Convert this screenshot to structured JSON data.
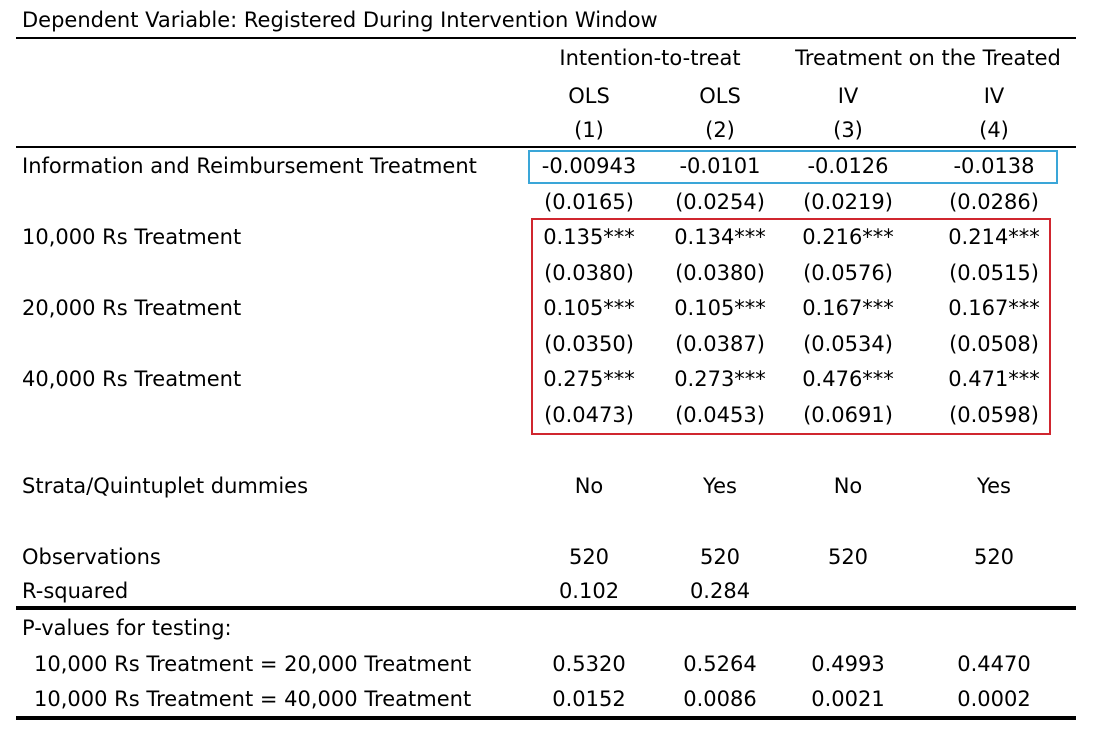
{
  "title": "Dependent Variable: Registered During Intervention Window",
  "header": {
    "groups": [
      "Intention-to-treat",
      "Treatment on the Treated"
    ],
    "methods": [
      "OLS",
      "OLS",
      "IV",
      "IV"
    ],
    "numbers": [
      "(1)",
      "(2)",
      "(3)",
      "(4)"
    ]
  },
  "rows": [
    {
      "label": "Information and Reimbursement Treatment",
      "coefs": [
        "-0.00943",
        "-0.0101",
        "-0.0126",
        "-0.0138"
      ],
      "ses": [
        "(0.0165)",
        "(0.0254)",
        "(0.0219)",
        "(0.0286)"
      ]
    },
    {
      "label": "10,000 Rs Treatment",
      "coefs": [
        "0.135***",
        "0.134***",
        "0.216***",
        "0.214***"
      ],
      "ses": [
        "(0.0380)",
        "(0.0380)",
        "(0.0576)",
        "(0.0515)"
      ]
    },
    {
      "label": "20,000 Rs Treatment",
      "coefs": [
        "0.105***",
        "0.105***",
        "0.167***",
        "0.167***"
      ],
      "ses": [
        "(0.0350)",
        "(0.0387)",
        "(0.0534)",
        "(0.0508)"
      ]
    },
    {
      "label": "40,000 Rs Treatment",
      "coefs": [
        "0.275***",
        "0.273***",
        "0.476***",
        "0.471***"
      ],
      "ses": [
        "(0.0473)",
        "(0.0453)",
        "(0.0691)",
        "(0.0598)"
      ]
    }
  ],
  "dummies": {
    "label": "Strata/Quintuplet dummies",
    "values": [
      "No",
      "Yes",
      "No",
      "Yes"
    ]
  },
  "observations": {
    "label": "Observations",
    "values": [
      "520",
      "520",
      "520",
      "520"
    ]
  },
  "rsquared": {
    "label": "R-squared",
    "values": [
      "0.102",
      "0.284"
    ]
  },
  "pvalues": {
    "heading": "P-values for testing:",
    "rows": [
      {
        "label": "10,000 Rs Treatment = 20,000 Treatment",
        "values": [
          "0.5320",
          "0.5264",
          "0.4993",
          "0.4470"
        ]
      },
      {
        "label": "10,000 Rs Treatment = 40,000 Treatment",
        "values": [
          "0.0152",
          "0.0086",
          "0.0021",
          "0.0002"
        ]
      }
    ]
  },
  "colors": {
    "highlight_blue": "#3aa6d8",
    "highlight_red": "#d0262f",
    "rule": "#000000"
  }
}
